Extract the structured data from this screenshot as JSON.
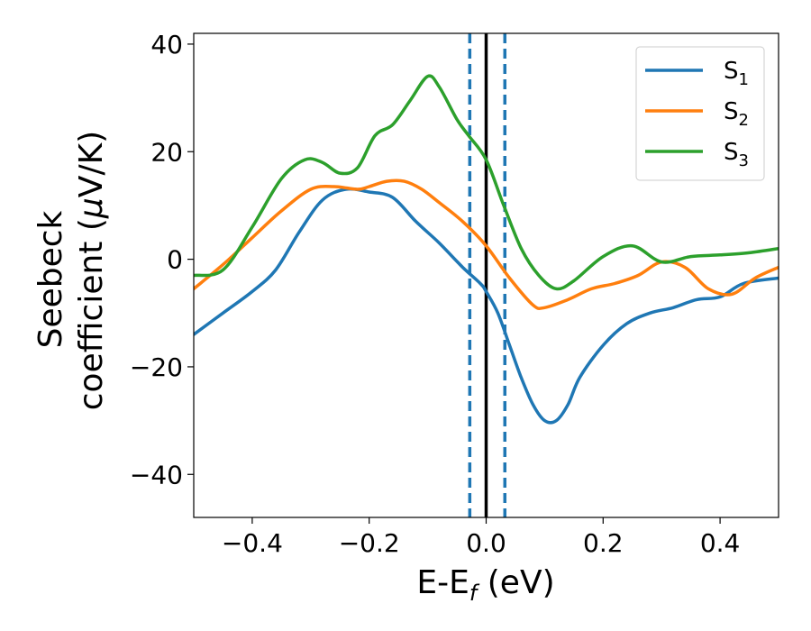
{
  "chart_data": {
    "type": "line",
    "xlabel": {
      "main": "E-E",
      "sub": "f",
      "unit": " (eV)"
    },
    "ylabel": {
      "line1": "Seebeck",
      "line2_text": "coefficient  (",
      "line2_mu": "μ",
      "line2_unit": "V/K)"
    },
    "xlim": [
      -0.5,
      0.5
    ],
    "ylim": [
      -48,
      42
    ],
    "xticks": [
      -0.4,
      -0.2,
      0.0,
      0.2,
      0.4
    ],
    "xtick_labels": [
      "−0.4",
      "−0.2",
      "0.0",
      "0.2",
      "0.4"
    ],
    "yticks": [
      -40,
      -20,
      0,
      20,
      40
    ],
    "ytick_labels": [
      "−40",
      "−20",
      "0",
      "20",
      "40"
    ],
    "grid": false,
    "legend_position": "top-right",
    "vertical_lines": [
      {
        "x": 0.0,
        "style": "solid",
        "color": "#000000"
      },
      {
        "x": -0.028,
        "style": "dashed",
        "color": "#1f77b4"
      },
      {
        "x": 0.032,
        "style": "dashed",
        "color": "#1f77b4"
      }
    ],
    "series": [
      {
        "name": "S",
        "sub": "1",
        "color": "#1f77b4",
        "x": [
          -0.5,
          -0.45,
          -0.4,
          -0.36,
          -0.32,
          -0.28,
          -0.24,
          -0.2,
          -0.16,
          -0.12,
          -0.08,
          -0.04,
          -0.01,
          0.0,
          0.02,
          0.04,
          0.06,
          0.08,
          0.1,
          0.12,
          0.14,
          0.16,
          0.2,
          0.24,
          0.28,
          0.32,
          0.36,
          0.4,
          0.44,
          0.5
        ],
        "y": [
          -14,
          -10,
          -6,
          -2,
          5,
          11,
          13,
          12.5,
          11.5,
          7,
          3,
          -1.5,
          -4.5,
          -6,
          -10,
          -16,
          -22,
          -27,
          -30,
          -30,
          -27,
          -22,
          -16,
          -12,
          -10,
          -9,
          -7.5,
          -7,
          -4.5,
          -3.5
        ]
      },
      {
        "name": "S",
        "sub": "2",
        "color": "#ff7f0e",
        "x": [
          -0.5,
          -0.45,
          -0.4,
          -0.35,
          -0.3,
          -0.26,
          -0.22,
          -0.2,
          -0.17,
          -0.14,
          -0.11,
          -0.08,
          -0.04,
          0.0,
          0.04,
          0.08,
          0.1,
          0.14,
          0.18,
          0.22,
          0.26,
          0.3,
          0.34,
          0.38,
          0.42,
          0.46,
          0.5
        ],
        "y": [
          -5.5,
          -1,
          4,
          9,
          13,
          13.5,
          13,
          13.5,
          14.5,
          14.5,
          13,
          10.5,
          7,
          2.5,
          -3.5,
          -8.5,
          -9,
          -7.5,
          -5.5,
          -4.5,
          -3,
          -0.5,
          -1.5,
          -5.5,
          -6.5,
          -3.5,
          -1.5
        ]
      },
      {
        "name": "S",
        "sub": "3",
        "color": "#2ca02c",
        "x": [
          -0.5,
          -0.45,
          -0.4,
          -0.35,
          -0.31,
          -0.28,
          -0.25,
          -0.22,
          -0.19,
          -0.16,
          -0.13,
          -0.1,
          -0.08,
          -0.05,
          -0.03,
          0.0,
          0.03,
          0.06,
          0.09,
          0.12,
          0.15,
          0.2,
          0.25,
          0.3,
          0.35,
          0.4,
          0.45,
          0.5
        ],
        "y": [
          -3,
          -2,
          6,
          15,
          18.5,
          18,
          16,
          17,
          23,
          25,
          29.5,
          34,
          32,
          26,
          23,
          18.5,
          10,
          2,
          -3,
          -5.5,
          -4,
          0.5,
          2.5,
          -0.5,
          0.5,
          0.8,
          1.2,
          2
        ]
      }
    ]
  }
}
